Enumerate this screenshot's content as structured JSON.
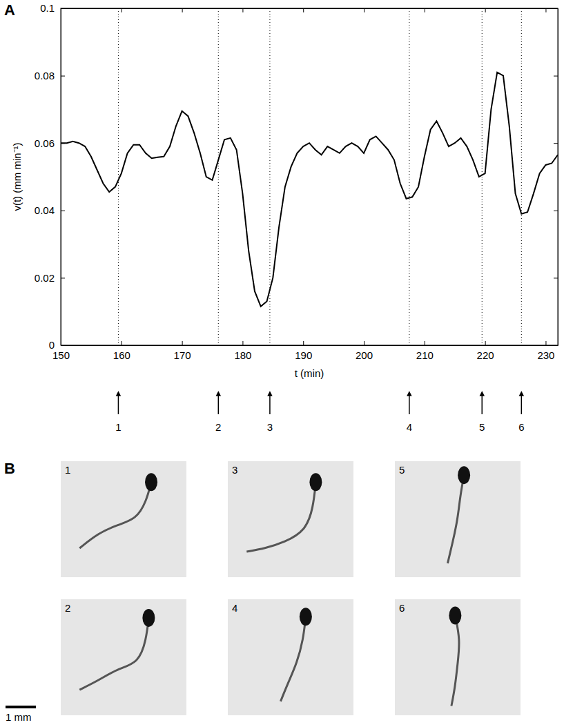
{
  "chart_data": {
    "type": "line",
    "panel": "A",
    "color": "#000000",
    "x_label": "t (min)",
    "y_label": "v(t) (mm min⁻¹)",
    "xlim": [
      150,
      232
    ],
    "ylim": [
      0,
      0.1
    ],
    "xticks": [
      150,
      160,
      170,
      180,
      190,
      200,
      210,
      220,
      230
    ],
    "yticks": [
      0,
      0.02,
      0.04,
      0.06,
      0.08,
      0.1
    ],
    "x": [
      150,
      151,
      152,
      153,
      154,
      155,
      156,
      157,
      158,
      159,
      160,
      161,
      162,
      163,
      164,
      165,
      166,
      167,
      168,
      169,
      170,
      171,
      172,
      173,
      174,
      175,
      176,
      177,
      178,
      179,
      180,
      181,
      182,
      183,
      184,
      185,
      186,
      187,
      188,
      189,
      190,
      191,
      192,
      193,
      194,
      195,
      196,
      197,
      198,
      199,
      200,
      201,
      202,
      203,
      204,
      205,
      206,
      207,
      208,
      209,
      210,
      211,
      212,
      213,
      214,
      215,
      216,
      217,
      218,
      219,
      220,
      221,
      222,
      223,
      224,
      225,
      226,
      227,
      228,
      229,
      230,
      231,
      232
    ],
    "values": [
      0.06,
      0.06,
      0.0605,
      0.06,
      0.059,
      0.056,
      0.052,
      0.048,
      0.0455,
      0.047,
      0.051,
      0.057,
      0.0595,
      0.0595,
      0.057,
      0.0555,
      0.0558,
      0.056,
      0.059,
      0.065,
      0.0695,
      0.068,
      0.063,
      0.057,
      0.05,
      0.049,
      0.055,
      0.061,
      0.0615,
      0.058,
      0.045,
      0.028,
      0.016,
      0.0115,
      0.013,
      0.02,
      0.035,
      0.047,
      0.053,
      0.057,
      0.059,
      0.06,
      0.058,
      0.0565,
      0.059,
      0.058,
      0.057,
      0.059,
      0.06,
      0.059,
      0.057,
      0.061,
      0.062,
      0.06,
      0.058,
      0.055,
      0.048,
      0.0435,
      0.044,
      0.047,
      0.056,
      0.064,
      0.0665,
      0.063,
      0.059,
      0.06,
      0.0615,
      0.059,
      0.055,
      0.05,
      0.051,
      0.07,
      0.081,
      0.08,
      0.065,
      0.045,
      0.039,
      0.0395,
      0.045,
      0.051,
      0.0535,
      0.054,
      0.0565
    ],
    "annotations": [
      {
        "x": 159.5,
        "label": "1"
      },
      {
        "x": 176,
        "label": "2"
      },
      {
        "x": 184.5,
        "label": "3"
      },
      {
        "x": 207.5,
        "label": "4"
      },
      {
        "x": 219.5,
        "label": "5"
      },
      {
        "x": 226,
        "label": "6"
      }
    ]
  },
  "panel_b": {
    "panel": "B",
    "images": [
      "1",
      "2",
      "3",
      "4",
      "5",
      "6"
    ],
    "scale_bar": "1 mm"
  }
}
